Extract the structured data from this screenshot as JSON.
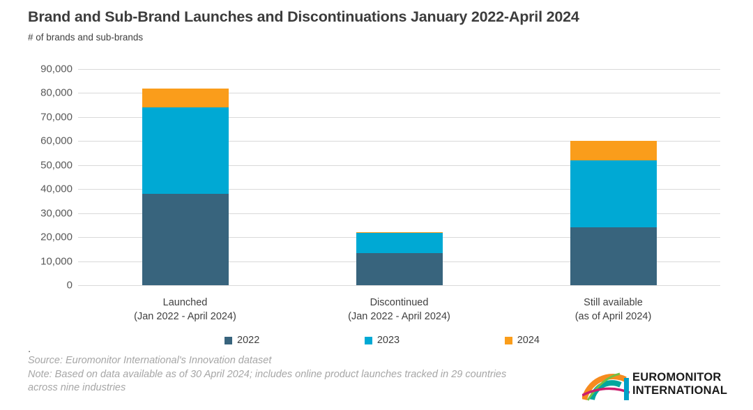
{
  "header": {
    "title": "Brand and Sub-Brand Launches and Discontinuations January 2022-April 2024",
    "subtitle": "# of brands and sub-brands"
  },
  "chart_data": {
    "type": "bar",
    "stacked": true,
    "title": "Brand and Sub-Brand Launches and Discontinuations January 2022-April 2024",
    "ylabel": "# of brands and sub-brands",
    "xlabel": "",
    "ylim": [
      0,
      90000
    ],
    "ytick_step": 10000,
    "grid": true,
    "legend_position": "bottom",
    "categories": [
      {
        "label": "Launched",
        "sublabel": "(Jan 2022 - April 2024)"
      },
      {
        "label": "Discontinued",
        "sublabel": "(Jan 2022 - April 2024)"
      },
      {
        "label": "Still available",
        "sublabel": "(as of April 2024)"
      }
    ],
    "series": [
      {
        "name": "2022",
        "color": "#38647d",
        "values": [
          38000,
          13500,
          24000
        ]
      },
      {
        "name": "2023",
        "color": "#00a9d4",
        "values": [
          36000,
          8200,
          28000
        ]
      },
      {
        "name": "2024",
        "color": "#fa9d1b",
        "values": [
          8000,
          300,
          8000
        ]
      }
    ],
    "totals": [
      82000,
      22000,
      60000
    ]
  },
  "footer": {
    "dot": ".",
    "source": "Source: Euromonitor International's Innovation dataset",
    "note": "Note: Based on data available as of 30 April 2024; includes online product launches tracked in 29 countries across nine industries"
  },
  "logo": {
    "line1": "EUROMONITOR",
    "line2": "INTERNATIONAL",
    "colors": {
      "orange": "#f68b1f",
      "teal": "#00a79d",
      "magenta": "#cb1e6d",
      "green": "#72bf44",
      "blue": "#00a0c6"
    }
  }
}
